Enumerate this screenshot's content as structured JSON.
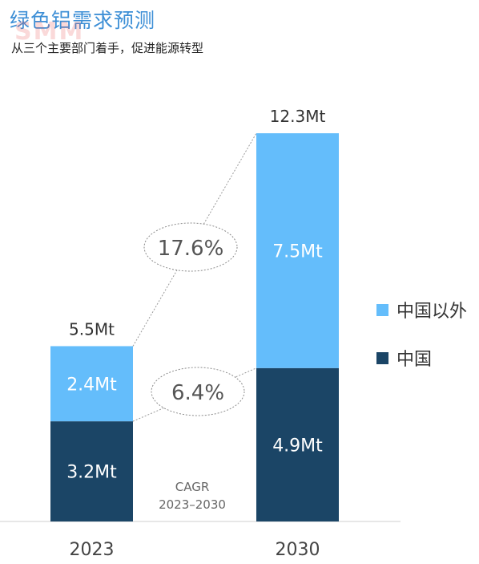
{
  "header": {
    "title": "绿色铝需求预测",
    "subtitle": "从三个主要部门着手，促进能源转型",
    "watermark": "SMM"
  },
  "colors": {
    "outside_china": "#64bdfb",
    "china": "#1b4566"
  },
  "chart_data": {
    "type": "bar",
    "stacked": true,
    "categories": [
      "2023",
      "2030"
    ],
    "series": [
      {
        "name": "中国",
        "values": [
          3.2,
          4.9
        ],
        "labels": [
          "3.2Mt",
          "4.9Mt"
        ],
        "color": "#1b4566"
      },
      {
        "name": "中国以外",
        "values": [
          2.4,
          7.5
        ],
        "labels": [
          "2.4Mt",
          "7.5Mt"
        ],
        "color": "#64bdfb"
      }
    ],
    "totals": [
      "5.5Mt",
      "12.3Mt"
    ],
    "cagr": {
      "label": "CAGR",
      "period": "2023–2030",
      "outside_china": "17.6%",
      "china": "6.4%"
    },
    "legend_position": "right",
    "ylim": [
      0,
      12.3
    ]
  }
}
